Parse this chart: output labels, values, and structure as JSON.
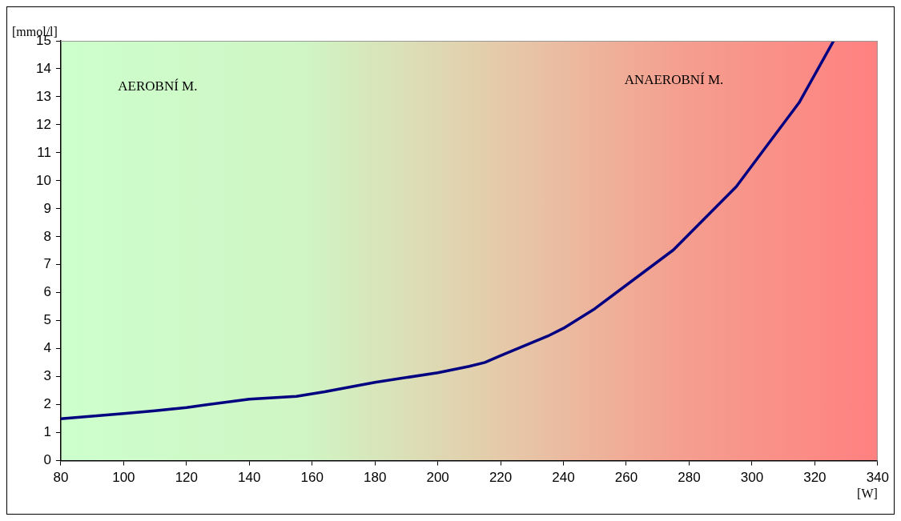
{
  "chart_data": {
    "type": "line",
    "ylabel": "[mmol/l]",
    "xlabel": "[W]",
    "annotations": [
      "AEROBNÍ M.",
      "ANAEROBNÍ M."
    ],
    "x": [
      80,
      100,
      110,
      120,
      140,
      155,
      164,
      180,
      200,
      210,
      215,
      220,
      235,
      240,
      250,
      275,
      295,
      315,
      326
    ],
    "series": [
      {
        "color": "#000080",
        "values": [
          1.5,
          1.68,
          1.78,
          1.9,
          2.2,
          2.3,
          2.46,
          2.8,
          3.14,
          3.37,
          3.51,
          3.75,
          4.45,
          4.73,
          5.43,
          7.53,
          9.79,
          12.79,
          15
        ]
      }
    ],
    "xlim": [
      80,
      340
    ],
    "xticks": [
      80,
      100,
      120,
      140,
      160,
      180,
      200,
      220,
      240,
      260,
      280,
      300,
      320,
      340
    ],
    "ylim": [
      0,
      15
    ],
    "yticks": [
      0,
      1,
      2,
      3,
      4,
      5,
      6,
      7,
      8,
      9,
      10,
      11,
      12,
      13,
      14,
      15
    ],
    "grid": false,
    "legend": false,
    "marker": "none",
    "line_style": "solid"
  }
}
